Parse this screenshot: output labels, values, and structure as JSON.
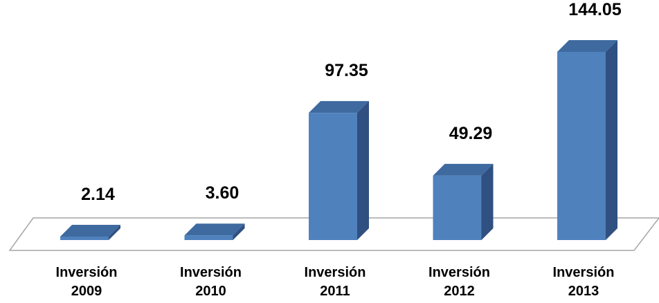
{
  "chart_data": {
    "type": "bar",
    "style": "3d-column",
    "categories": [
      [
        "Inversión",
        "2009"
      ],
      [
        "Inversión",
        "2010"
      ],
      [
        "Inversión",
        "2011"
      ],
      [
        "Inversión",
        "2012"
      ],
      [
        "Inversión",
        "2013"
      ]
    ],
    "values": [
      2.14,
      3.6,
      97.35,
      49.29,
      144.05
    ],
    "value_labels": [
      "2.14",
      "3.60",
      "97.35",
      "49.29",
      "144.05"
    ],
    "title": "",
    "xlabel": "",
    "ylabel": "",
    "ylim": [
      0,
      144.05
    ],
    "grid": false,
    "legend": "none",
    "colors": {
      "bar_front": "#4f81bd",
      "bar_top": "#3e6aa0",
      "bar_side": "#2f5080",
      "floor_line": "#a6a6a6"
    }
  }
}
